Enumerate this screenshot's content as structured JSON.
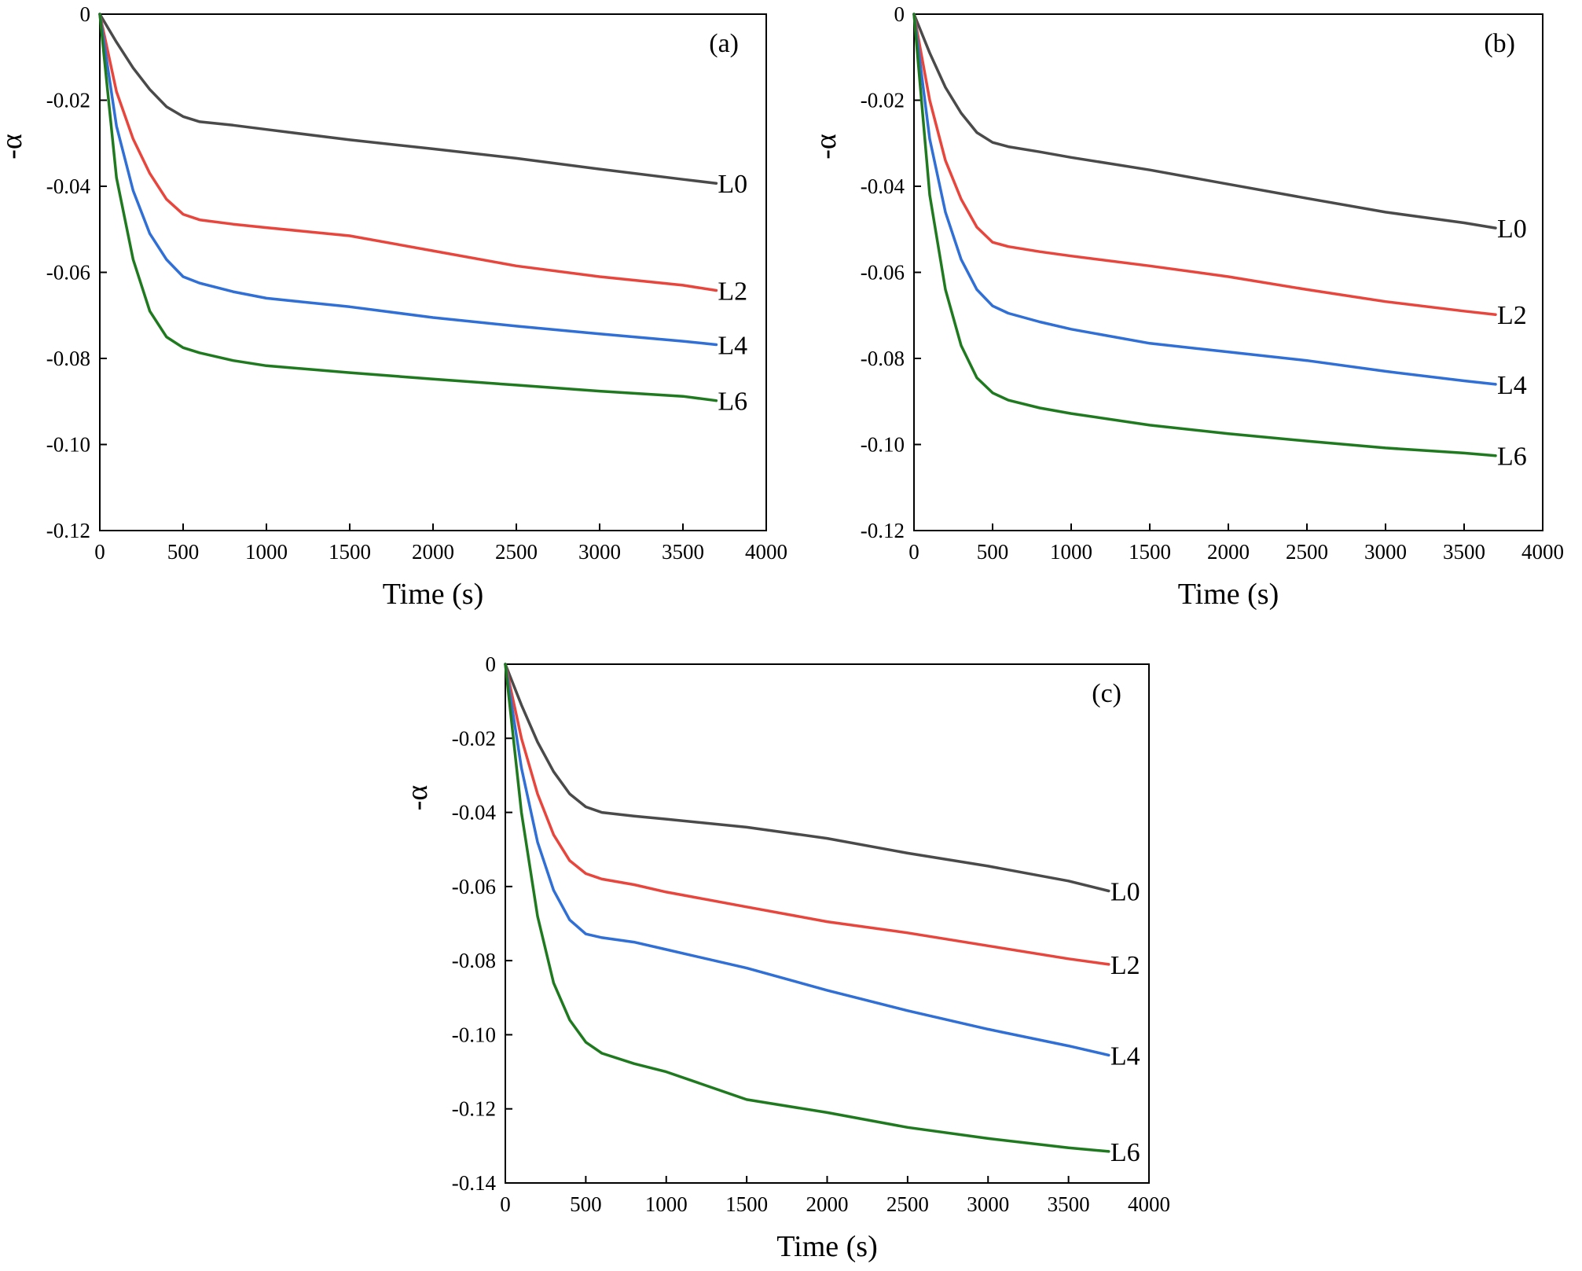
{
  "figure_title": "",
  "chart_data": [
    {
      "type": "line",
      "panel_label": "(a)",
      "xlabel": "Time (s)",
      "ylabel": "-α",
      "xlim": [
        0,
        4000
      ],
      "ylim": [
        -0.12,
        0
      ],
      "xticks": [
        0,
        500,
        1000,
        1500,
        2000,
        2500,
        3000,
        3500,
        4000
      ],
      "xtick_labels": [
        "0",
        "500",
        "1000",
        "1500",
        "2000",
        "2500",
        "3000",
        "3500",
        "4000"
      ],
      "yticks": [
        0,
        -0.02,
        -0.04,
        -0.06,
        -0.08,
        -0.1,
        -0.12
      ],
      "ytick_labels": [
        "0",
        "-0.02",
        "-0.04",
        "-0.06",
        "-0.08",
        "-0.10",
        "-0.12"
      ],
      "grid": false,
      "x": [
        0,
        100,
        200,
        300,
        400,
        500,
        600,
        800,
        1000,
        1500,
        2000,
        2500,
        3000,
        3500,
        3700
      ],
      "series": [
        {
          "name": "L0",
          "color": "#4a4a4a",
          "values": [
            0,
            -0.0065,
            -0.0125,
            -0.0175,
            -0.0215,
            -0.0238,
            -0.025,
            -0.0258,
            -0.0268,
            -0.0292,
            -0.0313,
            -0.0335,
            -0.036,
            -0.0384,
            -0.0393
          ]
        },
        {
          "name": "L2",
          "color": "#e8453c",
          "values": [
            0,
            -0.018,
            -0.029,
            -0.037,
            -0.043,
            -0.0465,
            -0.0478,
            -0.0488,
            -0.0496,
            -0.0515,
            -0.055,
            -0.0585,
            -0.061,
            -0.063,
            -0.0642
          ]
        },
        {
          "name": "L4",
          "color": "#2f6fd6",
          "values": [
            0,
            -0.026,
            -0.041,
            -0.051,
            -0.057,
            -0.061,
            -0.0625,
            -0.0645,
            -0.066,
            -0.068,
            -0.0705,
            -0.0725,
            -0.0743,
            -0.076,
            -0.0768
          ]
        },
        {
          "name": "L6",
          "color": "#1f7a1f",
          "values": [
            0,
            -0.038,
            -0.057,
            -0.069,
            -0.075,
            -0.0775,
            -0.0787,
            -0.0805,
            -0.0817,
            -0.0833,
            -0.0848,
            -0.0862,
            -0.0876,
            -0.0888,
            -0.0898
          ]
        }
      ]
    },
    {
      "type": "line",
      "panel_label": "(b)",
      "xlabel": "Time (s)",
      "ylabel": "-α",
      "xlim": [
        0,
        4000
      ],
      "ylim": [
        -0.12,
        0
      ],
      "xticks": [
        0,
        500,
        1000,
        1500,
        2000,
        2500,
        3000,
        3500,
        4000
      ],
      "xtick_labels": [
        "0",
        "500",
        "1000",
        "1500",
        "2000",
        "2500",
        "3000",
        "3500",
        "4000"
      ],
      "yticks": [
        0,
        -0.02,
        -0.04,
        -0.06,
        -0.08,
        -0.1,
        -0.12
      ],
      "ytick_labels": [
        "0",
        "-0.02",
        "-0.04",
        "-0.06",
        "-0.08",
        "-0.10",
        "-0.12"
      ],
      "grid": false,
      "x": [
        0,
        100,
        200,
        300,
        400,
        500,
        600,
        800,
        1000,
        1500,
        2000,
        2500,
        3000,
        3500,
        3700
      ],
      "series": [
        {
          "name": "L0",
          "color": "#4a4a4a",
          "values": [
            0,
            -0.009,
            -0.017,
            -0.023,
            -0.0275,
            -0.0298,
            -0.0308,
            -0.032,
            -0.0333,
            -0.0362,
            -0.0395,
            -0.0428,
            -0.046,
            -0.0485,
            -0.0497
          ]
        },
        {
          "name": "L2",
          "color": "#e8453c",
          "values": [
            0,
            -0.02,
            -0.034,
            -0.043,
            -0.0495,
            -0.053,
            -0.054,
            -0.0552,
            -0.0562,
            -0.0585,
            -0.061,
            -0.064,
            -0.0668,
            -0.069,
            -0.0698
          ]
        },
        {
          "name": "L4",
          "color": "#2f6fd6",
          "values": [
            0,
            -0.029,
            -0.046,
            -0.057,
            -0.064,
            -0.0678,
            -0.0695,
            -0.0715,
            -0.0732,
            -0.0765,
            -0.0785,
            -0.0805,
            -0.083,
            -0.0852,
            -0.086
          ]
        },
        {
          "name": "L6",
          "color": "#1f7a1f",
          "values": [
            0,
            -0.042,
            -0.064,
            -0.077,
            -0.0845,
            -0.088,
            -0.0897,
            -0.0915,
            -0.0928,
            -0.0955,
            -0.0975,
            -0.0992,
            -0.1008,
            -0.102,
            -0.1026
          ]
        }
      ]
    },
    {
      "type": "line",
      "panel_label": "(c)",
      "xlabel": "Time (s)",
      "ylabel": "-α",
      "xlim": [
        0,
        4000
      ],
      "ylim": [
        -0.14,
        0
      ],
      "xticks": [
        0,
        500,
        1000,
        1500,
        2000,
        2500,
        3000,
        3500,
        4000
      ],
      "xtick_labels": [
        "0",
        "500",
        "1000",
        "1500",
        "2000",
        "2500",
        "3000",
        "3500",
        "4000"
      ],
      "yticks": [
        0,
        -0.02,
        -0.04,
        -0.06,
        -0.08,
        -0.1,
        -0.12,
        -0.14
      ],
      "ytick_labels": [
        "0",
        "-0.02",
        "-0.04",
        "-0.06",
        "-0.08",
        "-0.10",
        "-0.12",
        "-0.14"
      ],
      "grid": false,
      "x": [
        0,
        100,
        200,
        300,
        400,
        500,
        600,
        800,
        1000,
        1500,
        2000,
        2500,
        3000,
        3500,
        3750
      ],
      "series": [
        {
          "name": "L0",
          "color": "#4a4a4a",
          "values": [
            0,
            -0.011,
            -0.021,
            -0.029,
            -0.035,
            -0.0385,
            -0.04,
            -0.041,
            -0.0418,
            -0.044,
            -0.047,
            -0.051,
            -0.0545,
            -0.0585,
            -0.0612
          ]
        },
        {
          "name": "L2",
          "color": "#e8453c",
          "values": [
            0,
            -0.02,
            -0.035,
            -0.046,
            -0.053,
            -0.0565,
            -0.058,
            -0.0595,
            -0.0615,
            -0.0655,
            -0.0695,
            -0.0725,
            -0.076,
            -0.0795,
            -0.081
          ]
        },
        {
          "name": "L4",
          "color": "#2f6fd6",
          "values": [
            0,
            -0.028,
            -0.048,
            -0.061,
            -0.069,
            -0.0728,
            -0.0738,
            -0.075,
            -0.077,
            -0.082,
            -0.088,
            -0.0935,
            -0.0985,
            -0.103,
            -0.1055
          ]
        },
        {
          "name": "L6",
          "color": "#1f7a1f",
          "values": [
            0,
            -0.04,
            -0.068,
            -0.086,
            -0.096,
            -0.102,
            -0.105,
            -0.1078,
            -0.11,
            -0.1175,
            -0.121,
            -0.125,
            -0.128,
            -0.1305,
            -0.1315
          ]
        }
      ]
    }
  ]
}
